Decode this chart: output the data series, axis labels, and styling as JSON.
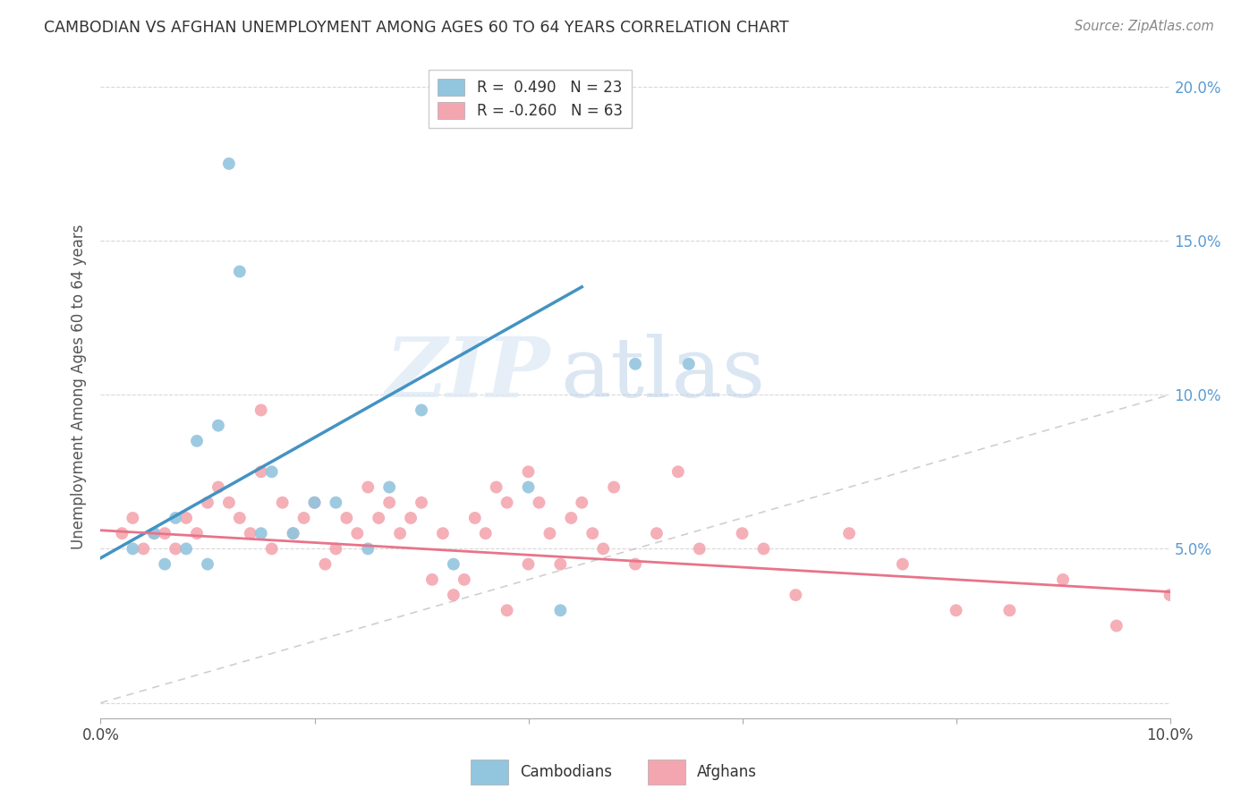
{
  "title": "CAMBODIAN VS AFGHAN UNEMPLOYMENT AMONG AGES 60 TO 64 YEARS CORRELATION CHART",
  "source": "Source: ZipAtlas.com",
  "ylabel": "Unemployment Among Ages 60 to 64 years",
  "xlim": [
    0.0,
    0.1
  ],
  "ylim": [
    -0.005,
    0.21
  ],
  "legend_cambodian_r": "R =  0.490",
  "legend_cambodian_n": "N = 23",
  "legend_afghan_r": "R = -0.260",
  "legend_afghan_n": "N = 63",
  "cambodian_color": "#92c5de",
  "afghan_color": "#f4a6b0",
  "cambodian_line_color": "#4393c3",
  "afghan_line_color": "#e8748a",
  "diagonal_color": "#b0b0b0",
  "cambodian_scatter_x": [
    0.003,
    0.005,
    0.006,
    0.007,
    0.008,
    0.009,
    0.01,
    0.011,
    0.012,
    0.013,
    0.015,
    0.016,
    0.018,
    0.02,
    0.022,
    0.025,
    0.027,
    0.03,
    0.033,
    0.04,
    0.043,
    0.05,
    0.055
  ],
  "cambodian_scatter_y": [
    0.05,
    0.055,
    0.045,
    0.06,
    0.05,
    0.085,
    0.045,
    0.09,
    0.175,
    0.14,
    0.055,
    0.075,
    0.055,
    0.065,
    0.065,
    0.05,
    0.07,
    0.095,
    0.045,
    0.07,
    0.03,
    0.11,
    0.11
  ],
  "afghan_scatter_x": [
    0.002,
    0.003,
    0.004,
    0.005,
    0.006,
    0.007,
    0.008,
    0.009,
    0.01,
    0.011,
    0.012,
    0.013,
    0.014,
    0.015,
    0.015,
    0.016,
    0.017,
    0.018,
    0.019,
    0.02,
    0.021,
    0.022,
    0.023,
    0.024,
    0.025,
    0.026,
    0.027,
    0.028,
    0.029,
    0.03,
    0.031,
    0.032,
    0.033,
    0.034,
    0.035,
    0.036,
    0.037,
    0.038,
    0.038,
    0.04,
    0.041,
    0.042,
    0.043,
    0.044,
    0.045,
    0.046,
    0.047,
    0.048,
    0.05,
    0.052,
    0.054,
    0.056,
    0.06,
    0.062,
    0.065,
    0.07,
    0.075,
    0.08,
    0.085,
    0.09,
    0.095,
    0.1,
    0.04
  ],
  "afghan_scatter_y": [
    0.055,
    0.06,
    0.05,
    0.055,
    0.055,
    0.05,
    0.06,
    0.055,
    0.065,
    0.07,
    0.065,
    0.06,
    0.055,
    0.095,
    0.075,
    0.05,
    0.065,
    0.055,
    0.06,
    0.065,
    0.045,
    0.05,
    0.06,
    0.055,
    0.07,
    0.06,
    0.065,
    0.055,
    0.06,
    0.065,
    0.04,
    0.055,
    0.035,
    0.04,
    0.06,
    0.055,
    0.07,
    0.065,
    0.03,
    0.045,
    0.065,
    0.055,
    0.045,
    0.06,
    0.065,
    0.055,
    0.05,
    0.07,
    0.045,
    0.055,
    0.075,
    0.05,
    0.055,
    0.05,
    0.035,
    0.055,
    0.045,
    0.03,
    0.03,
    0.04,
    0.025,
    0.035,
    0.075
  ],
  "cam_line_x0": 0.0,
  "cam_line_y0": 0.047,
  "cam_line_x1": 0.045,
  "cam_line_y1": 0.135,
  "afg_line_x0": 0.0,
  "afg_line_y0": 0.056,
  "afg_line_x1": 0.1,
  "afg_line_y1": 0.036,
  "watermark_zip": "ZIP",
  "watermark_atlas": "atlas",
  "background_color": "#ffffff",
  "grid_color": "#d8d8d8"
}
